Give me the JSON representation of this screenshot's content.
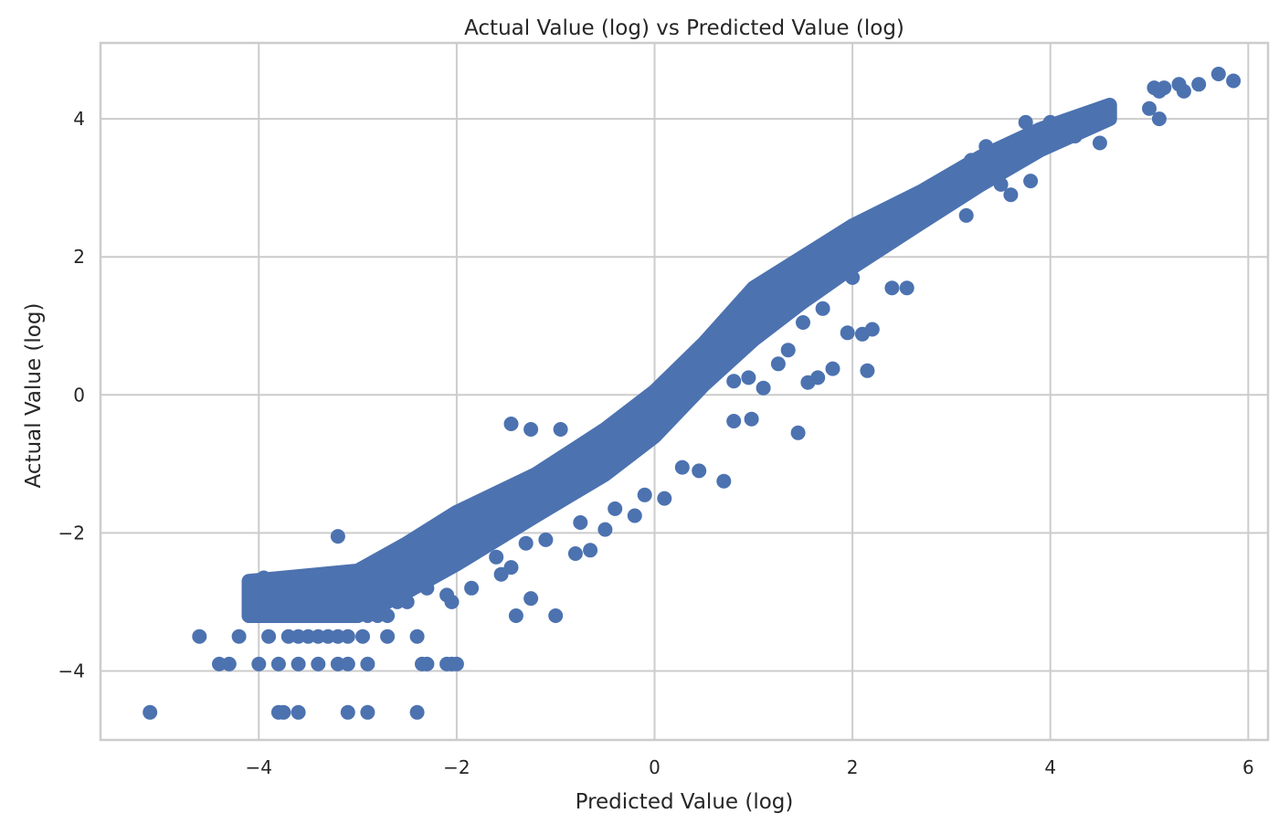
{
  "chart_data": {
    "type": "scatter",
    "title": "Actual Value (log) vs Predicted Value (log)",
    "xlabel": "Predicted Value (log)",
    "ylabel": "Actual Value (log)",
    "xlim": [
      -5.6,
      6.2
    ],
    "ylim": [
      -5.0,
      5.1
    ],
    "xticks": [
      -4,
      -2,
      0,
      2,
      4,
      6
    ],
    "yticks": [
      -4,
      -2,
      0,
      2,
      4
    ],
    "xtick_labels": [
      "−4",
      "−2",
      "0",
      "2",
      "4",
      "6"
    ],
    "ytick_labels": [
      "−4",
      "−2",
      "0",
      "2",
      "4"
    ],
    "grid": true,
    "marker_color": "#4c72b0",
    "series": [
      {
        "points": [
          [
            -5.1,
            -4.6
          ],
          [
            -3.8,
            -4.6
          ],
          [
            -3.75,
            -4.6
          ],
          [
            -3.6,
            -4.6
          ],
          [
            -3.1,
            -4.6
          ],
          [
            -2.9,
            -4.6
          ],
          [
            -2.4,
            -4.6
          ],
          [
            -4.4,
            -3.9
          ],
          [
            -4.3,
            -3.9
          ],
          [
            -4.0,
            -3.9
          ],
          [
            -3.8,
            -3.9
          ],
          [
            -3.6,
            -3.9
          ],
          [
            -3.4,
            -3.9
          ],
          [
            -3.2,
            -3.9
          ],
          [
            -3.1,
            -3.9
          ],
          [
            -2.9,
            -3.9
          ],
          [
            -2.35,
            -3.9
          ],
          [
            -2.3,
            -3.9
          ],
          [
            -2.1,
            -3.9
          ],
          [
            -2.05,
            -3.9
          ],
          [
            -2.0,
            -3.9
          ],
          [
            -4.6,
            -3.5
          ],
          [
            -4.2,
            -3.5
          ],
          [
            -3.9,
            -3.5
          ],
          [
            -3.7,
            -3.5
          ],
          [
            -3.6,
            -3.5
          ],
          [
            -3.5,
            -3.5
          ],
          [
            -3.4,
            -3.5
          ],
          [
            -3.3,
            -3.5
          ],
          [
            -3.2,
            -3.5
          ],
          [
            -3.1,
            -3.5
          ],
          [
            -2.95,
            -3.5
          ],
          [
            -2.7,
            -3.5
          ],
          [
            -2.4,
            -3.5
          ],
          [
            -4.1,
            -3.2
          ],
          [
            -4.0,
            -3.2
          ],
          [
            -3.9,
            -3.2
          ],
          [
            -3.8,
            -3.2
          ],
          [
            -3.7,
            -3.2
          ],
          [
            -3.6,
            -3.2
          ],
          [
            -3.5,
            -3.2
          ],
          [
            -3.4,
            -3.2
          ],
          [
            -3.3,
            -3.2
          ],
          [
            -3.2,
            -3.2
          ],
          [
            -3.1,
            -3.2
          ],
          [
            -3.0,
            -3.2
          ],
          [
            -2.9,
            -3.2
          ],
          [
            -2.8,
            -3.2
          ],
          [
            -2.7,
            -3.2
          ],
          [
            -4.0,
            -3.0
          ],
          [
            -3.9,
            -3.0
          ],
          [
            -3.7,
            -3.0
          ],
          [
            -3.5,
            -3.0
          ],
          [
            -3.3,
            -3.0
          ],
          [
            -3.1,
            -3.0
          ],
          [
            -2.9,
            -3.0
          ],
          [
            -2.7,
            -3.0
          ],
          [
            -2.6,
            -3.0
          ],
          [
            -2.5,
            -3.0
          ],
          [
            -3.95,
            -2.65
          ],
          [
            -3.95,
            -2.8
          ],
          [
            -3.8,
            -2.8
          ],
          [
            -3.7,
            -2.8
          ],
          [
            -3.5,
            -2.8
          ],
          [
            -3.3,
            -2.8
          ],
          [
            -3.1,
            -2.8
          ],
          [
            -2.9,
            -2.8
          ],
          [
            -2.7,
            -2.8
          ],
          [
            -2.5,
            -2.8
          ],
          [
            -2.3,
            -2.8
          ],
          [
            -3.6,
            -2.65
          ],
          [
            -3.4,
            -2.65
          ],
          [
            -3.2,
            -2.65
          ],
          [
            -3.0,
            -2.65
          ],
          [
            -2.8,
            -2.65
          ],
          [
            -3.2,
            -2.05
          ],
          [
            -1.45,
            -0.42
          ],
          [
            -1.25,
            -0.5
          ],
          [
            -0.95,
            -0.5
          ],
          [
            0.8,
            -0.38
          ],
          [
            0.98,
            -0.35
          ],
          [
            1.45,
            -0.55
          ],
          [
            0.7,
            -1.25
          ],
          [
            0.45,
            -1.1
          ],
          [
            0.28,
            -1.05
          ],
          [
            -0.1,
            -1.45
          ],
          [
            0.1,
            -1.5
          ],
          [
            -0.2,
            -1.75
          ],
          [
            -0.4,
            -1.65
          ],
          [
            -0.5,
            -1.95
          ],
          [
            -0.75,
            -1.85
          ],
          [
            -0.65,
            -2.25
          ],
          [
            -0.8,
            -2.3
          ],
          [
            -1.45,
            -2.5
          ],
          [
            -1.6,
            -2.35
          ],
          [
            -1.3,
            -2.15
          ],
          [
            -1.1,
            -2.1
          ],
          [
            -1.25,
            -2.95
          ],
          [
            -1.0,
            -3.2
          ],
          [
            -1.4,
            -3.2
          ],
          [
            -1.55,
            -2.6
          ],
          [
            -2.05,
            -3.0
          ],
          [
            -2.1,
            -2.9
          ],
          [
            -1.85,
            -2.8
          ],
          [
            -2.35,
            -2.7
          ],
          [
            2.0,
            1.7
          ],
          [
            2.4,
            1.55
          ],
          [
            2.55,
            1.55
          ],
          [
            2.1,
            0.88
          ],
          [
            2.2,
            0.95
          ],
          [
            1.95,
            0.9
          ],
          [
            2.15,
            0.35
          ],
          [
            1.8,
            0.38
          ],
          [
            1.65,
            0.25
          ],
          [
            1.55,
            0.18
          ],
          [
            1.25,
            0.45
          ],
          [
            1.35,
            0.65
          ],
          [
            1.5,
            1.05
          ],
          [
            1.7,
            1.25
          ],
          [
            0.95,
            0.25
          ],
          [
            1.1,
            0.1
          ],
          [
            0.8,
            0.2
          ],
          [
            3.6,
            2.9
          ],
          [
            3.15,
            2.6
          ],
          [
            3.8,
            3.1
          ],
          [
            4.5,
            3.65
          ],
          [
            4.25,
            3.75
          ],
          [
            4.05,
            3.85
          ],
          [
            3.5,
            3.05
          ],
          [
            5.0,
            4.15
          ],
          [
            5.1,
            4.0
          ],
          [
            5.35,
            4.4
          ],
          [
            5.15,
            4.45
          ],
          [
            5.7,
            4.65
          ],
          [
            5.85,
            4.55
          ],
          [
            5.5,
            4.5
          ],
          [
            5.3,
            4.5
          ],
          [
            5.1,
            4.4
          ],
          [
            5.05,
            4.45
          ],
          [
            3.75,
            3.95
          ],
          [
            4.0,
            3.95
          ],
          [
            3.35,
            3.6
          ],
          [
            3.2,
            3.4
          ],
          [
            2.9,
            3.0
          ],
          [
            2.5,
            2.55
          ],
          [
            1.8,
            2.05
          ]
        ]
      }
    ]
  }
}
